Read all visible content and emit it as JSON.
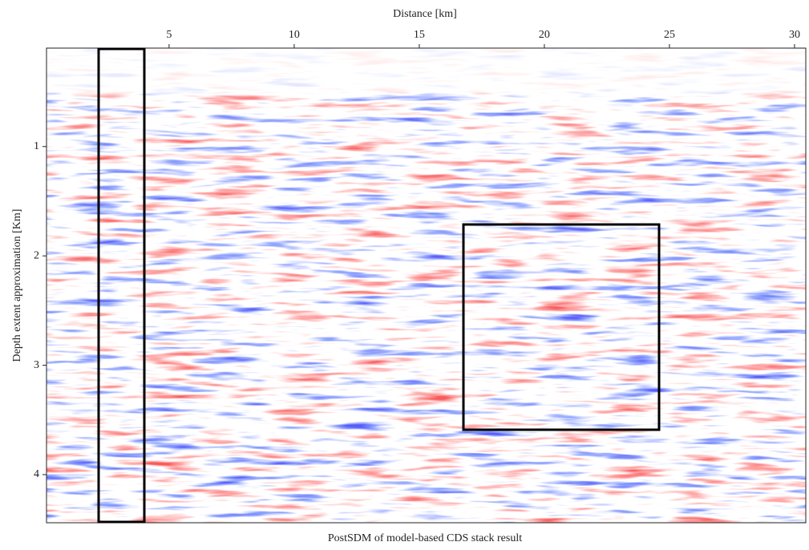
{
  "chart_data": {
    "type": "seismic-section",
    "x_label": "Distance [km]",
    "y_label": "Depth extent approximation [Km]",
    "caption": "PostSDM of model-based CDS stack result",
    "xlim": [
      0.1,
      30.45
    ],
    "xticks": [
      5,
      10,
      15,
      20,
      25,
      30
    ],
    "ylim": [
      0.1,
      4.44
    ],
    "yticks": [
      1,
      2,
      3,
      4
    ],
    "y_inverted": true,
    "x_axis_position": "top"
  }
}
